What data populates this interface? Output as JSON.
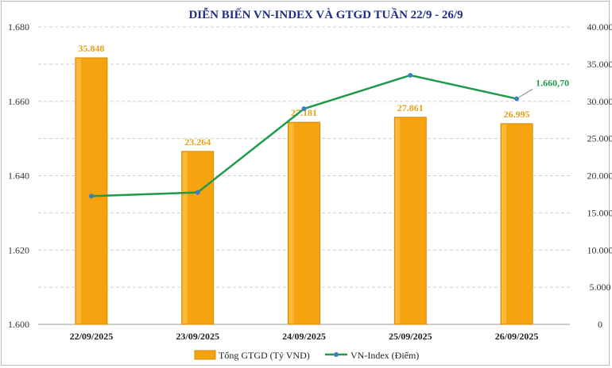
{
  "chart_data": {
    "type": "bar",
    "title": "DIỄN BIẾN VN-INDEX VÀ GTGD TUẦN 22/9 - 26/9",
    "categories": [
      "22/09/2025",
      "23/09/2025",
      "24/09/2025",
      "25/09/2025",
      "26/09/2025"
    ],
    "series": [
      {
        "name": "Tổng GTGD (Tỷ VND)",
        "type": "bar",
        "axis": "right",
        "values": [
          35848,
          23264,
          27181,
          27861,
          26995
        ],
        "labels": [
          "35.848",
          "23.264",
          "27.181",
          "27.861",
          "26.995"
        ],
        "color": "#f5a40f"
      },
      {
        "name": "VN-Index (Điểm)",
        "type": "line",
        "axis": "left",
        "values": [
          1634.5,
          1635.5,
          1658.0,
          1667.0,
          1660.7
        ],
        "labels": [
          "",
          "",
          "",
          "",
          "1.660,70"
        ],
        "color": "#1f9a4a",
        "marker_color": "#3f7fc0"
      }
    ],
    "left_axis": {
      "ylim": [
        1600,
        1680
      ],
      "ticks": [
        1600,
        1620,
        1640,
        1660,
        1680
      ],
      "tick_labels": [
        "1.600",
        "1.620",
        "1.640",
        "1.660",
        "1.680"
      ]
    },
    "right_axis": {
      "ylim": [
        0,
        40000
      ],
      "ticks": [
        0,
        5000,
        10000,
        15000,
        20000,
        25000,
        30000,
        35000,
        40000
      ],
      "tick_labels": [
        "0",
        "5.000",
        "10.000",
        "15.000",
        "20.000",
        "25.000",
        "30.000",
        "35.000",
        "40.000"
      ]
    },
    "grid": "horizontal-dashed",
    "legend": "bottom-center"
  }
}
